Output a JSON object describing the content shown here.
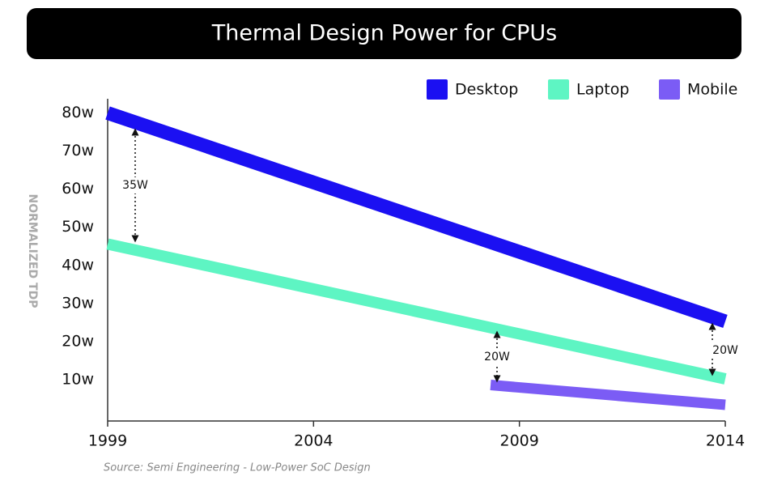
{
  "chart_data": {
    "type": "line",
    "title": "Thermal Design Power for CPUs",
    "y_label": "NORMALIZED TDP",
    "source": "Source: Semi Engineering - Low-Power SoC Design",
    "xlim": [
      1999,
      2014
    ],
    "xticks": [
      1999,
      2004,
      2009,
      2014
    ],
    "ylim": [
      0,
      85
    ],
    "yticks": [
      {
        "value": 80,
        "label": "80w"
      },
      {
        "value": 70,
        "label": "70w"
      },
      {
        "value": 60,
        "label": "60w"
      },
      {
        "value": 50,
        "label": "50w"
      },
      {
        "value": 40,
        "label": "40w"
      },
      {
        "value": 30,
        "label": "30w"
      },
      {
        "value": 20,
        "label": "20w"
      },
      {
        "value": 10,
        "label": "10w"
      }
    ],
    "series": [
      {
        "name": "Desktop",
        "color": "#1b10f2",
        "x": [
          1999,
          2014
        ],
        "values": [
          80,
          25.3
        ]
      },
      {
        "name": "Laptop",
        "color": "#5ef5c3",
        "x": [
          1999,
          2014
        ],
        "values": [
          45.6,
          10.2
        ]
      },
      {
        "name": "Mobile",
        "color": "#7b5cf5",
        "x": [
          2008.3,
          2014
        ],
        "values": [
          8.6,
          3.4
        ]
      }
    ],
    "annotations": [
      "35W",
      "20W",
      "20W"
    ]
  }
}
